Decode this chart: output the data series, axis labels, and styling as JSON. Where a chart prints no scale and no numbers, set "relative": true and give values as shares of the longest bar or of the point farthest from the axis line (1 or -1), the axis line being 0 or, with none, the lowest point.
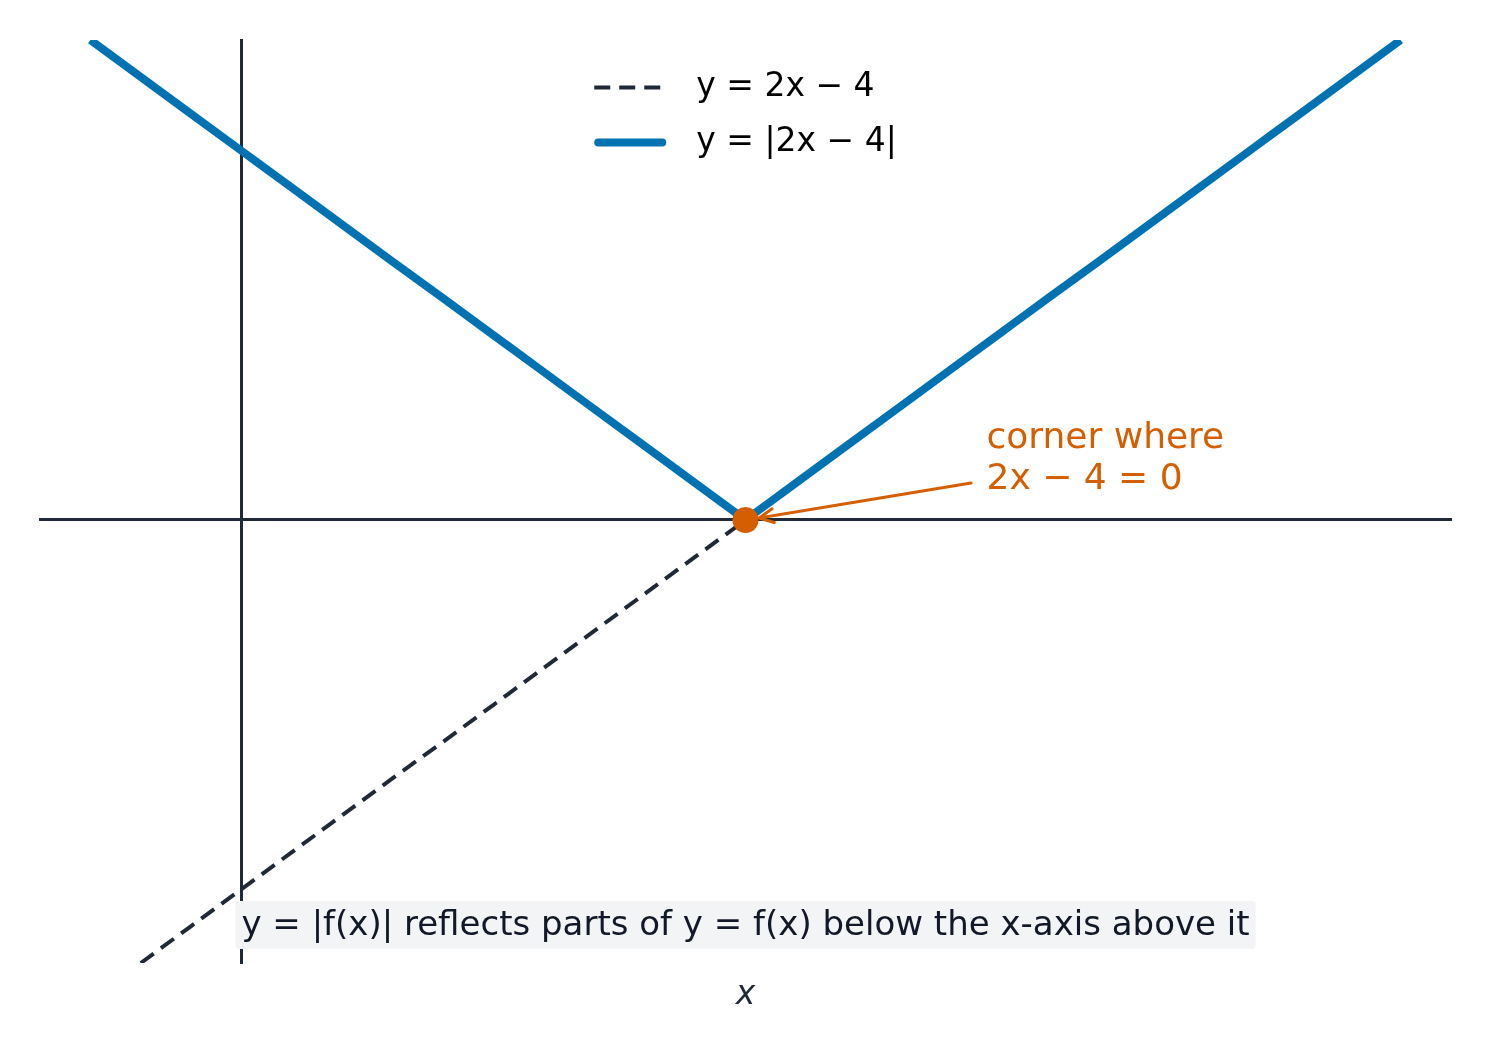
{
  "chart_data": {
    "type": "line",
    "xlabel": "x",
    "relative": true,
    "legend": "top",
    "tick_labels": false,
    "categories": [
      null,
      null,
      null,
      null,
      null,
      null,
      null,
      null,
      null,
      null,
      null,
      null,
      null,
      null,
      null,
      null,
      null,
      null,
      null,
      null,
      null,
      null,
      null,
      null,
      null,
      null,
      null,
      null,
      null
    ],
    "series": [
      {
        "name": "y = 2x − 4",
        "color": "#1f2937",
        "line_style": "dashed",
        "values": [
          null,
          null,
          -0.923,
          -0.846,
          -0.769,
          -0.692,
          -0.615,
          -0.538,
          -0.462,
          -0.385,
          -0.308,
          -0.231,
          -0.154,
          -0.077,
          0,
          null,
          null,
          null,
          null,
          null,
          null,
          null,
          null,
          null,
          null,
          null,
          null,
          null,
          null
        ]
      },
      {
        "name": "y = |2x − 4|",
        "color": "#0072b2",
        "line_style": "solid",
        "values": [
          null,
          1,
          0.923,
          0.846,
          0.769,
          0.692,
          0.615,
          0.538,
          0.462,
          0.385,
          0.308,
          0.231,
          0.154,
          0.077,
          0,
          0.077,
          0.154,
          0.231,
          0.308,
          0.385,
          0.462,
          0.538,
          0.615,
          0.692,
          0.769,
          0.846,
          0.923,
          1,
          null
        ]
      },
      {
        "color": "#d55e00",
        "marker": "circle",
        "values": [
          null,
          null,
          null,
          null,
          null,
          null,
          null,
          null,
          null,
          null,
          null,
          null,
          null,
          null,
          0,
          null,
          null,
          null,
          null,
          null,
          null,
          null,
          null,
          null,
          null,
          null,
          null,
          null,
          null
        ]
      }
    ],
    "annotations": [
      {
        "text": "corner where\n2x − 4 = 0"
      },
      "y = |f(x)| reflects parts of y = f(x) below the x-axis above it"
    ]
  }
}
